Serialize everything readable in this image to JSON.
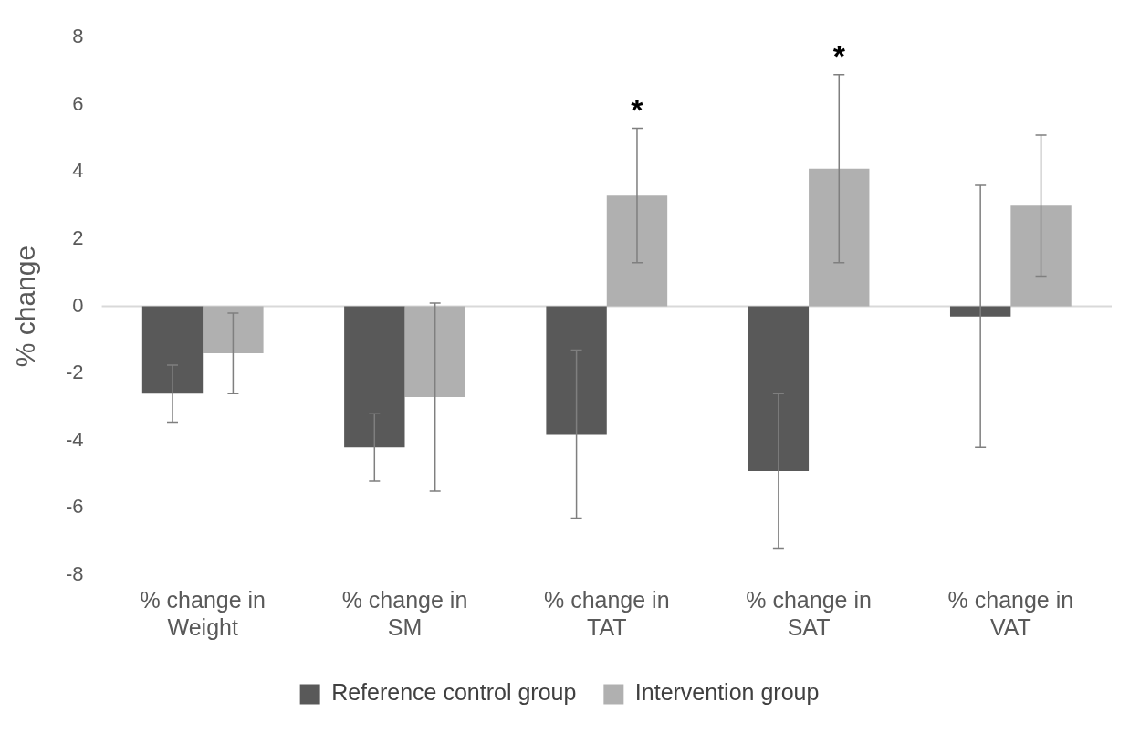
{
  "chart_data": {
    "type": "bar",
    "ylabel": "% change",
    "categories": [
      "% change in Weight",
      "% change in SM",
      "% change in TAT",
      "% change in SAT",
      "% change in VAT"
    ],
    "series": [
      {
        "name": "Reference control group",
        "color": "#595959",
        "values": [
          -2.6,
          -4.2,
          -3.8,
          -4.9,
          -0.3
        ],
        "errors": [
          0.85,
          1.0,
          2.5,
          2.3,
          3.9
        ]
      },
      {
        "name": "Intervention group",
        "color": "#b0b0b0",
        "values": [
          -1.4,
          -2.7,
          3.3,
          4.1,
          3.0
        ],
        "errors": [
          1.2,
          2.8,
          2.0,
          2.8,
          2.1
        ]
      }
    ],
    "ylim": [
      -8,
      8
    ],
    "yticks": [
      -8,
      -6,
      -4,
      -2,
      0,
      2,
      4,
      6,
      8
    ],
    "grid": false,
    "legend": "bottom",
    "ref_lines": [
      {
        "axis": "y",
        "value": 0,
        "color": "#d9d9d9"
      }
    ],
    "annotations": [
      "*",
      "*"
    ]
  }
}
